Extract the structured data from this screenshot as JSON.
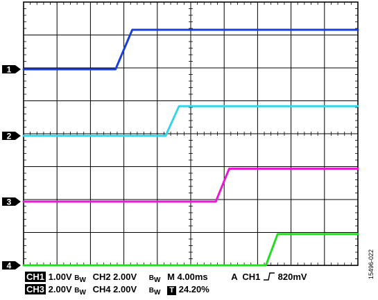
{
  "chart_data": {
    "type": "line",
    "title": "",
    "xlabel": "",
    "ylabel": "",
    "grid": true,
    "grid_divisions": {
      "x": 10,
      "y": 8
    },
    "x_range_ms": [
      0,
      40
    ],
    "series": [
      {
        "marker": "1",
        "color": "#1a3fd6",
        "points_ms_div": [
          [
            0,
            0
          ],
          [
            11.0,
            0
          ],
          [
            13.0,
            1.2
          ],
          [
            40,
            1.2
          ]
        ]
      },
      {
        "marker": "2",
        "color": "#35d4e6",
        "points_ms_div": [
          [
            0,
            0
          ],
          [
            17.0,
            0
          ],
          [
            18.6,
            0.9
          ],
          [
            40,
            0.9
          ]
        ]
      },
      {
        "marker": "3",
        "color": "#e61ad4",
        "points_ms_div": [
          [
            0,
            0
          ],
          [
            23.0,
            0
          ],
          [
            24.6,
            1.0
          ],
          [
            40,
            1.0
          ]
        ]
      },
      {
        "marker": "4",
        "color": "#22dd22",
        "points_ms_div": [
          [
            0,
            0
          ],
          [
            29.0,
            0
          ],
          [
            30.4,
            0.95
          ],
          [
            40,
            0.95
          ]
        ]
      }
    ],
    "readout": {
      "row1": {
        "ch_a": "CH1",
        "ch_a_scale": "1.00V",
        "bw1": "B",
        "bw1_sub": "W",
        "ch_b": "CH2 2.00V",
        "bw2": "B",
        "bw2_sub": "W",
        "timebase": "M 4.00ms",
        "trigger_pre": "A  CH1",
        "trigger_level": "820mV"
      },
      "row2": {
        "ch_a": "CH3",
        "ch_a_scale": "2.00V",
        "bw1": "B",
        "bw1_sub": "W",
        "ch_b": "CH4 2.00V",
        "bw2": "B",
        "bw2_sub": "W",
        "t_label": "T",
        "position": "24.20%"
      }
    }
  },
  "figure_id": "15496-022"
}
